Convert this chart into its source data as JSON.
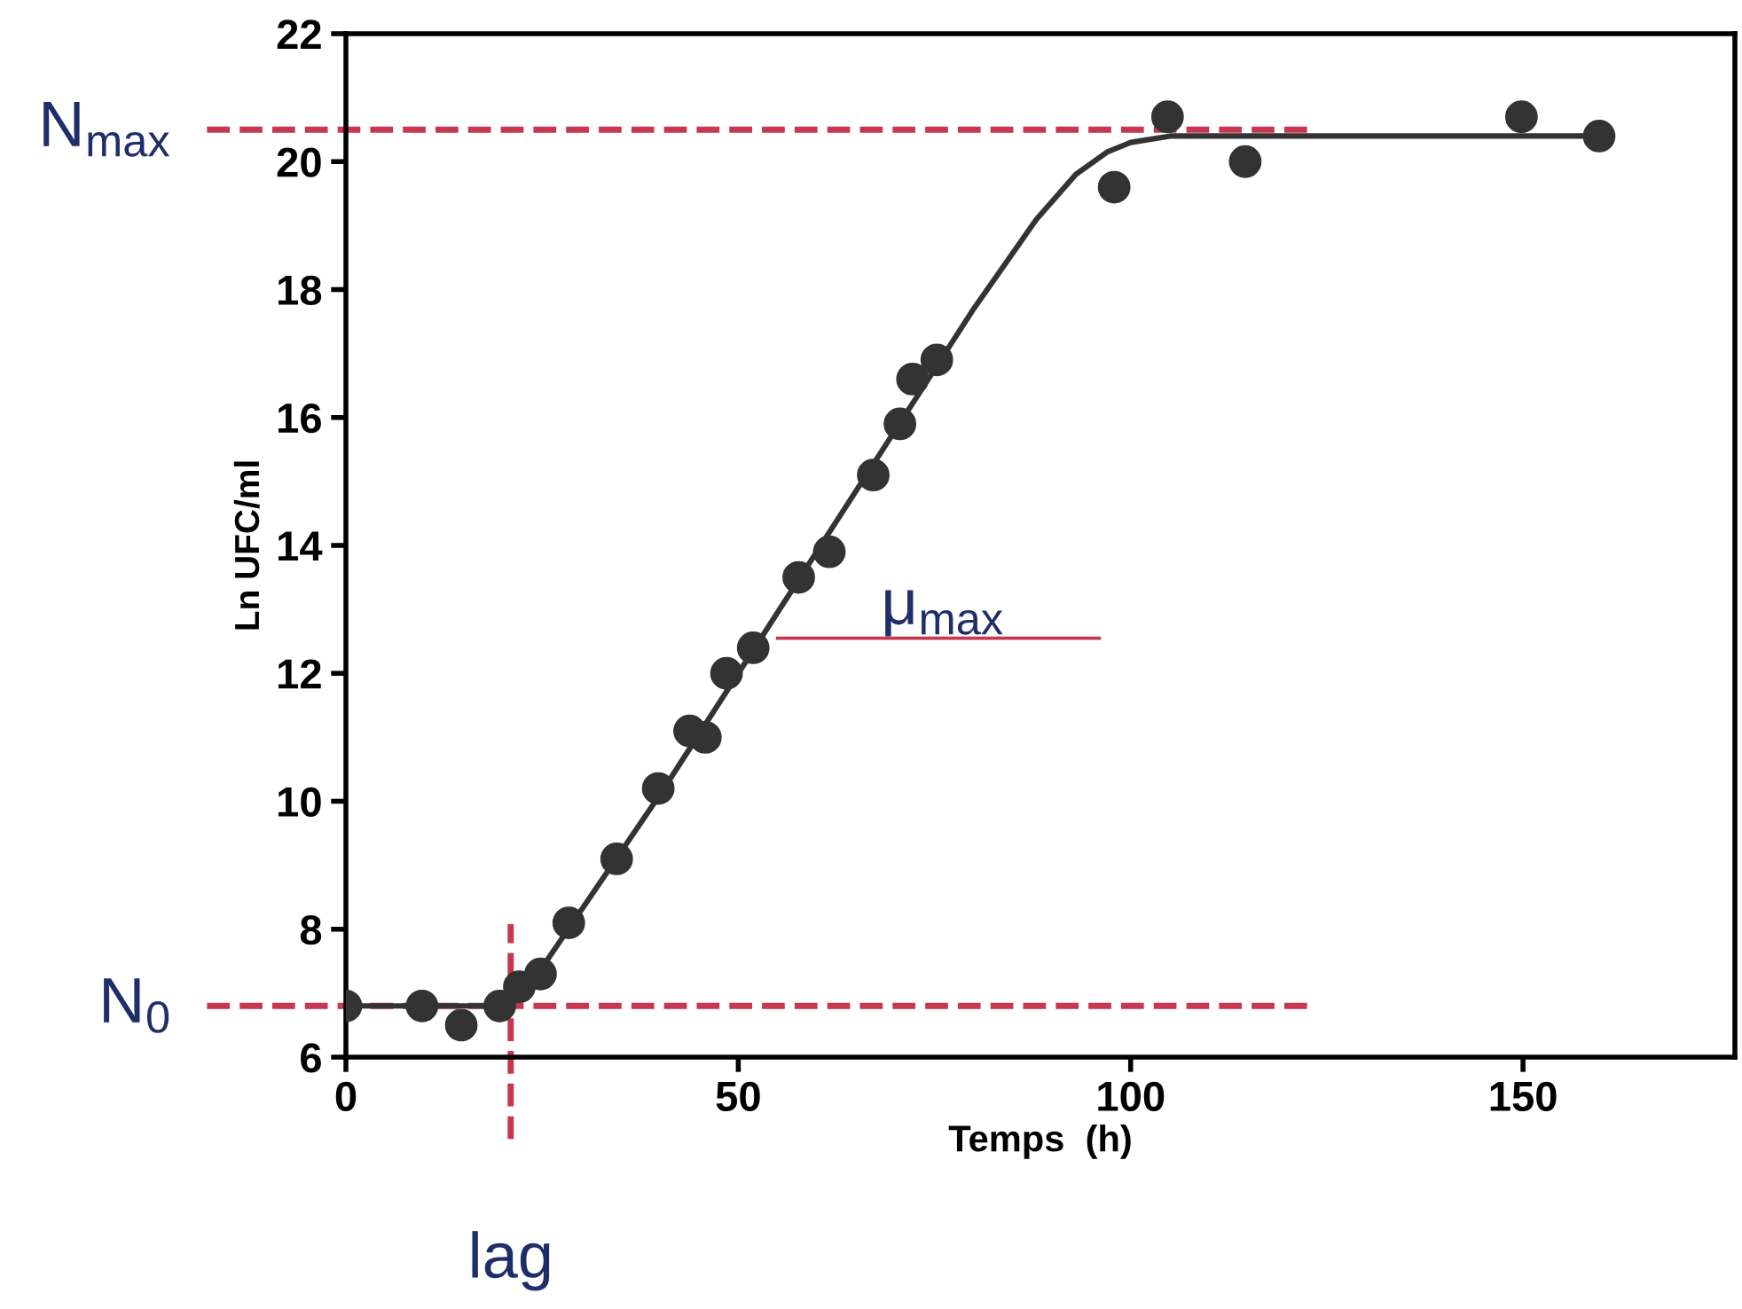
{
  "chart_data": {
    "type": "scatter",
    "xlabel": "Temps  (h)",
    "ylabel": "Ln UFC/ml",
    "xlim": [
      0,
      177
    ],
    "ylim": [
      6,
      22
    ],
    "xticks": [
      0,
      50,
      100,
      150
    ],
    "yticks": [
      6,
      8,
      10,
      12,
      14,
      16,
      18,
      20,
      22
    ],
    "grid": false,
    "legend": false,
    "marker": "circle",
    "series": [
      {
        "color": "#333333",
        "x": [
          0,
          9.7,
          14.7,
          19.6,
          22.1,
          24.8,
          28.4,
          34.5,
          39.8,
          43.8,
          45.8,
          48.5,
          51.9,
          57.7,
          61.6,
          67.2,
          70.6,
          72.2,
          75.3,
          97.9,
          104.7,
          114.6,
          149.8,
          159.7
        ],
        "values": [
          6.8,
          6.8,
          6.5,
          6.8,
          7.1,
          7.3,
          8.1,
          9.1,
          10.2,
          11.1,
          11.0,
          12.0,
          12.4,
          13.5,
          13.9,
          15.1,
          15.9,
          16.6,
          16.9,
          19.6,
          20.7,
          20.0,
          20.7,
          20.4
        ]
      },
      {
        "type": "line",
        "color": "#c8374f",
        "line_style": "solid",
        "marker": "none",
        "x": [
          55,
          96
        ],
        "values": [
          12.55,
          12.55
        ]
      },
      {
        "type": "line",
        "color": "#333333",
        "line_style": "solid",
        "marker": "none",
        "x": [
          0,
          20,
          22,
          25,
          30,
          40,
          50,
          60,
          70,
          80,
          88,
          93,
          97,
          100,
          105,
          110,
          120,
          160
        ],
        "values": [
          6.8,
          6.8,
          6.9,
          7.4,
          8.3,
          10.1,
          12.0,
          13.9,
          15.8,
          17.7,
          19.1,
          19.8,
          20.15,
          20.3,
          20.4,
          20.4,
          20.4,
          20.4
        ]
      }
    ],
    "ref_lines": [
      {
        "axis": "y",
        "value": 20.5,
        "label": "N$_{max}$",
        "color": "#c8374f",
        "line_style": "dashed"
      },
      {
        "axis": "y",
        "value": 6.8,
        "label": "N$_{0}$",
        "color": "#c8374f",
        "line_style": "dashed"
      },
      {
        "axis": "x",
        "value": 21,
        "label": "lag",
        "color": "#c8374f",
        "line_style": "dashed"
      }
    ],
    "annotations": [
      "μ$_{max}$"
    ]
  }
}
